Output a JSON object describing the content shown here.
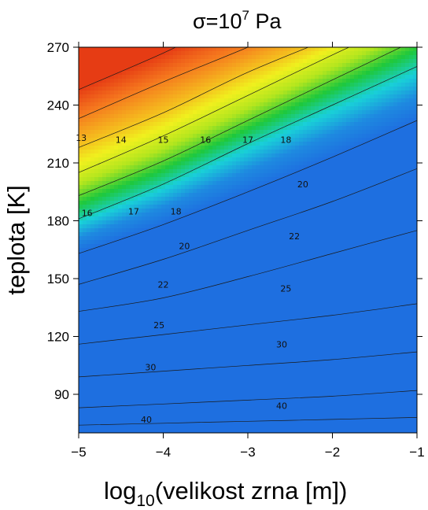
{
  "chart_data": {
    "type": "heatmap",
    "title_base": "σ=10",
    "title_exponent": "7",
    "title_unit": " Pa",
    "xlabel_base": "log",
    "xlabel_sub": "10",
    "xlabel_rest": "(velikost zrna [m])",
    "ylabel": "teplota [K]",
    "xlim": [
      -5,
      -1
    ],
    "ylim": [
      70,
      270
    ],
    "x_ticks": [
      {
        "value": -5,
        "label": "−5"
      },
      {
        "value": -4,
        "label": "−4"
      },
      {
        "value": -3,
        "label": "−3"
      },
      {
        "value": -2,
        "label": "−2"
      },
      {
        "value": -1,
        "label": "−1"
      }
    ],
    "y_ticks": [
      {
        "value": 90,
        "label": "90"
      },
      {
        "value": 120,
        "label": "120"
      },
      {
        "value": 150,
        "label": "150"
      },
      {
        "value": 180,
        "label": "180"
      },
      {
        "value": 210,
        "label": "210"
      },
      {
        "value": 240,
        "label": "240"
      },
      {
        "value": 270,
        "label": "270"
      }
    ],
    "colormap": [
      "#1e6fe0",
      "#1e8ae0",
      "#19d0d8",
      "#1ec83c",
      "#b4e61e",
      "#f0f01e",
      "#f5b41e",
      "#f5781e",
      "#e63c14"
    ],
    "colormap_range": [
      20,
      13
    ],
    "contours": [
      {
        "level": 13,
        "label": "13",
        "line": [
          [
            -5,
            248
          ],
          [
            -4,
            267
          ],
          [
            -3.3,
            282
          ]
        ],
        "labels": [
          {
            "x": -4.97,
            "y": 223,
            "text": "13"
          }
        ]
      },
      {
        "level": 14,
        "label": "14",
        "line": [
          [
            -5,
            233
          ],
          [
            -4,
            252
          ],
          [
            -3,
            270
          ],
          [
            -2.5,
            280
          ]
        ],
        "labels": [
          {
            "x": -4.5,
            "y": 222,
            "text": "14"
          }
        ]
      },
      {
        "level": 15,
        "label": "15",
        "line": [
          [
            -5,
            218
          ],
          [
            -4,
            236
          ],
          [
            -3,
            257
          ],
          [
            -2,
            275
          ]
        ],
        "labels": [
          {
            "x": -4.0,
            "y": 222,
            "text": "15"
          }
        ]
      },
      {
        "level": 16,
        "label": "16",
        "line": [
          [
            -5,
            205
          ],
          [
            -4,
            224
          ],
          [
            -3,
            245
          ],
          [
            -2,
            266
          ],
          [
            -1.5,
            276
          ]
        ],
        "labels": [
          {
            "x": -4.9,
            "y": 184,
            "text": "16"
          },
          {
            "x": -3.5,
            "y": 222,
            "text": "16"
          }
        ]
      },
      {
        "level": 17,
        "label": "17",
        "line": [
          [
            -5,
            193
          ],
          [
            -4,
            211
          ],
          [
            -3,
            232
          ],
          [
            -2,
            253
          ],
          [
            -1,
            274
          ]
        ],
        "labels": [
          {
            "x": -4.35,
            "y": 185,
            "text": "17"
          },
          {
            "x": -3.0,
            "y": 222,
            "text": "17"
          }
        ]
      },
      {
        "level": 18,
        "label": "18",
        "line": [
          [
            -5,
            181
          ],
          [
            -4,
            199
          ],
          [
            -3,
            220
          ],
          [
            -2,
            240
          ],
          [
            -1,
            260
          ]
        ],
        "labels": [
          {
            "x": -3.85,
            "y": 185,
            "text": "18"
          },
          {
            "x": -2.55,
            "y": 222,
            "text": "18"
          }
        ]
      },
      {
        "level": 20,
        "label": "20",
        "line": [
          [
            -5,
            163
          ],
          [
            -4,
            178
          ],
          [
            -3,
            195
          ],
          [
            -2,
            213
          ],
          [
            -1,
            232
          ]
        ],
        "labels": [
          {
            "x": -3.75,
            "y": 167,
            "text": "20"
          },
          {
            "x": -2.35,
            "y": 199,
            "text": "20"
          }
        ]
      },
      {
        "level": 22,
        "label": "22",
        "line": [
          [
            -5,
            147
          ],
          [
            -4,
            160
          ],
          [
            -3,
            175
          ],
          [
            -2,
            190
          ],
          [
            -1,
            207
          ]
        ],
        "labels": [
          {
            "x": -4.0,
            "y": 147,
            "text": "22"
          },
          {
            "x": -2.45,
            "y": 172,
            "text": "22"
          }
        ]
      },
      {
        "level": 25,
        "label": "25",
        "line": [
          [
            -5,
            133
          ],
          [
            -4,
            140
          ],
          [
            -3,
            151
          ],
          [
            -2,
            163
          ],
          [
            -1,
            175
          ]
        ],
        "labels": [
          {
            "x": -4.05,
            "y": 126,
            "text": "25"
          },
          {
            "x": -2.55,
            "y": 145,
            "text": "25"
          }
        ]
      },
      {
        "level": 30,
        "label": "30",
        "line": [
          [
            -5,
            116
          ],
          [
            -4,
            121
          ],
          [
            -3,
            126
          ],
          [
            -2,
            131
          ],
          [
            -1,
            137
          ]
        ],
        "labels": [
          {
            "x": -4.15,
            "y": 104,
            "text": "30"
          },
          {
            "x": -2.6,
            "y": 116,
            "text": "30"
          }
        ]
      },
      {
        "level": 40,
        "label": "40",
        "line": [
          [
            -5,
            99
          ],
          [
            -4,
            102
          ],
          [
            -3,
            105
          ],
          [
            -2,
            108
          ],
          [
            -1,
            112
          ]
        ],
        "labels": [
          {
            "x": -4.2,
            "y": 77,
            "text": "40"
          },
          {
            "x": -2.6,
            "y": 84,
            "text": "40"
          }
        ]
      },
      {
        "level": 60,
        "label": "",
        "line": [
          [
            -5,
            83
          ],
          [
            -4,
            85
          ],
          [
            -3,
            87
          ],
          [
            -2,
            89
          ],
          [
            -1,
            92
          ]
        ],
        "labels": []
      },
      {
        "level": 90,
        "label": "",
        "line": [
          [
            -5,
            74
          ],
          [
            -4,
            75
          ],
          [
            -3,
            76
          ],
          [
            -2,
            77
          ],
          [
            -1,
            78
          ]
        ],
        "labels": []
      }
    ]
  }
}
